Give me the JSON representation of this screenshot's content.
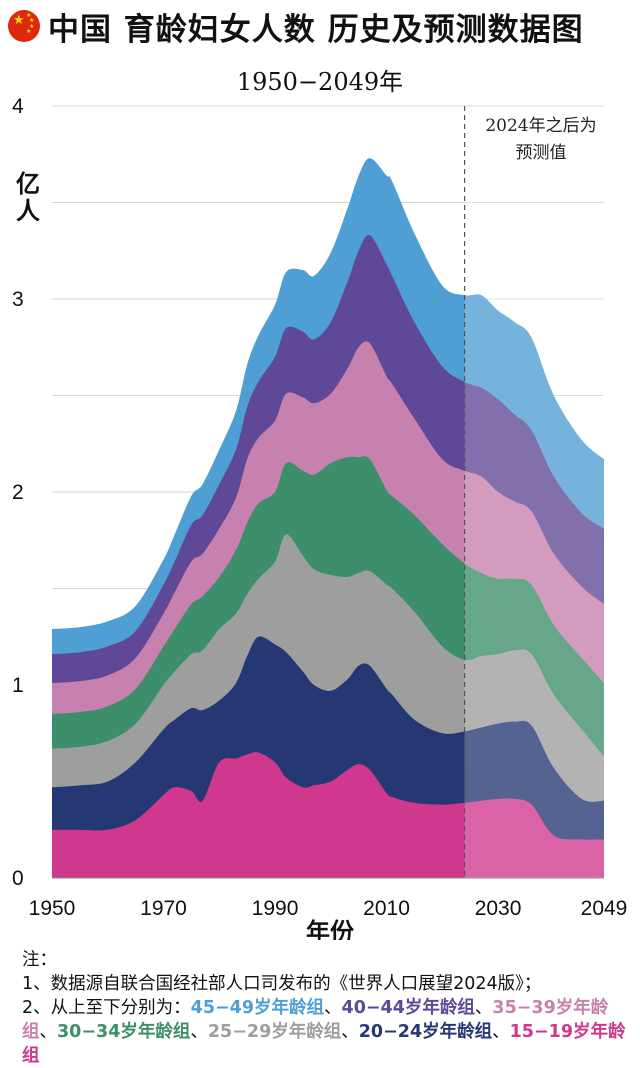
{
  "header": {
    "flag_icon": "china-flag-icon",
    "title": "中国 育龄妇女人数 历史及预测数据图",
    "subtitle": "1950−2049年"
  },
  "chart_data": {
    "type": "area",
    "stacked": true,
    "title": "中国 育龄妇女人数 历史及预测数据图",
    "subtitle": "1950−2049年",
    "xlabel": "年份",
    "ylabel": "亿人",
    "xlim": [
      1950,
      2049
    ],
    "ylim": [
      0,
      4
    ],
    "x_ticks": [
      "1950",
      "1970",
      "1990",
      "2010",
      "2030",
      "2049"
    ],
    "y_ticks": [
      "0",
      "1",
      "2",
      "3",
      "4"
    ],
    "grid": true,
    "forecast_from": 2024,
    "annotation": "2024年之后为预测值",
    "x": [
      1950,
      1955,
      1960,
      1965,
      1970,
      1972,
      1975,
      1977,
      1980,
      1983,
      1985,
      1987,
      1990,
      1992,
      1995,
      1997,
      2000,
      2003,
      2005,
      2007,
      2010,
      2011,
      2015,
      2020,
      2024,
      2027,
      2030,
      2033,
      2036,
      2040,
      2045,
      2049
    ],
    "series": [
      {
        "name": "15−19岁年龄组",
        "color": "#d0388d",
        "values": [
          0.25,
          0.25,
          0.25,
          0.3,
          0.43,
          0.47,
          0.45,
          0.4,
          0.6,
          0.62,
          0.64,
          0.65,
          0.6,
          0.52,
          0.47,
          0.48,
          0.5,
          0.56,
          0.59,
          0.56,
          0.44,
          0.42,
          0.39,
          0.38,
          0.39,
          0.4,
          0.41,
          0.41,
          0.38,
          0.22,
          0.2,
          0.2
        ]
      },
      {
        "name": "20−24岁年龄组",
        "color": "#253873",
        "values": [
          0.22,
          0.23,
          0.25,
          0.3,
          0.34,
          0.35,
          0.43,
          0.47,
          0.32,
          0.39,
          0.51,
          0.6,
          0.61,
          0.65,
          0.6,
          0.52,
          0.47,
          0.47,
          0.51,
          0.54,
          0.54,
          0.53,
          0.43,
          0.37,
          0.37,
          0.38,
          0.39,
          0.4,
          0.41,
          0.35,
          0.21,
          0.2
        ]
      },
      {
        "name": "25−29岁年龄组",
        "color": "#9e9e9e",
        "values": [
          0.2,
          0.2,
          0.21,
          0.2,
          0.23,
          0.25,
          0.28,
          0.31,
          0.37,
          0.36,
          0.32,
          0.3,
          0.43,
          0.61,
          0.6,
          0.6,
          0.6,
          0.53,
          0.48,
          0.49,
          0.54,
          0.55,
          0.56,
          0.45,
          0.37,
          0.37,
          0.36,
          0.37,
          0.37,
          0.38,
          0.36,
          0.23
        ]
      },
      {
        "name": "30−34岁年龄组",
        "color": "#3c8f6a",
        "values": [
          0.18,
          0.18,
          0.18,
          0.18,
          0.2,
          0.22,
          0.26,
          0.28,
          0.27,
          0.33,
          0.37,
          0.39,
          0.36,
          0.37,
          0.44,
          0.49,
          0.58,
          0.62,
          0.6,
          0.58,
          0.49,
          0.48,
          0.5,
          0.53,
          0.5,
          0.43,
          0.39,
          0.37,
          0.36,
          0.36,
          0.37,
          0.38
        ]
      },
      {
        "name": "35−39岁年龄组",
        "color": "#c781ae",
        "values": [
          0.16,
          0.16,
          0.16,
          0.16,
          0.17,
          0.19,
          0.22,
          0.22,
          0.25,
          0.27,
          0.33,
          0.34,
          0.37,
          0.36,
          0.38,
          0.37,
          0.36,
          0.46,
          0.57,
          0.6,
          0.59,
          0.58,
          0.5,
          0.44,
          0.48,
          0.5,
          0.45,
          0.4,
          0.38,
          0.37,
          0.37,
          0.41
        ]
      },
      {
        "name": "40−44岁年龄组",
        "color": "#5f4897",
        "values": [
          0.15,
          0.15,
          0.15,
          0.14,
          0.15,
          0.16,
          0.19,
          0.2,
          0.23,
          0.25,
          0.27,
          0.29,
          0.33,
          0.34,
          0.34,
          0.33,
          0.37,
          0.45,
          0.5,
          0.56,
          0.58,
          0.56,
          0.5,
          0.48,
          0.46,
          0.46,
          0.48,
          0.45,
          0.42,
          0.4,
          0.38,
          0.39
        ]
      },
      {
        "name": "45−49岁年龄组",
        "color": "#4f9ed4",
        "values": [
          0.13,
          0.13,
          0.13,
          0.13,
          0.13,
          0.14,
          0.15,
          0.16,
          0.18,
          0.2,
          0.22,
          0.24,
          0.27,
          0.29,
          0.32,
          0.33,
          0.36,
          0.38,
          0.39,
          0.4,
          0.46,
          0.49,
          0.46,
          0.42,
          0.45,
          0.48,
          0.46,
          0.48,
          0.48,
          0.42,
          0.38,
          0.36
        ]
      }
    ]
  },
  "notes": {
    "heading": "注：",
    "line1": "1、数据源自联合国经社部人口司发布的《世界人口展望2024版》；",
    "line2_prefix": "2、从上至下分别为：",
    "sep": "、",
    "groups": [
      {
        "label": "45−49岁年龄组",
        "color": "#4f9ed4"
      },
      {
        "label": "40−44岁年龄组",
        "color": "#5f4897"
      },
      {
        "label": "35−39岁年龄组",
        "color": "#c781ae"
      },
      {
        "label": "30−34岁年龄组",
        "color": "#3c8f6a"
      },
      {
        "label": "25−29岁年龄组",
        "color": "#9e9e9e"
      },
      {
        "label": "20−24岁年龄组",
        "color": "#253873"
      },
      {
        "label": "15−19岁年龄组",
        "color": "#d0388d"
      }
    ]
  }
}
